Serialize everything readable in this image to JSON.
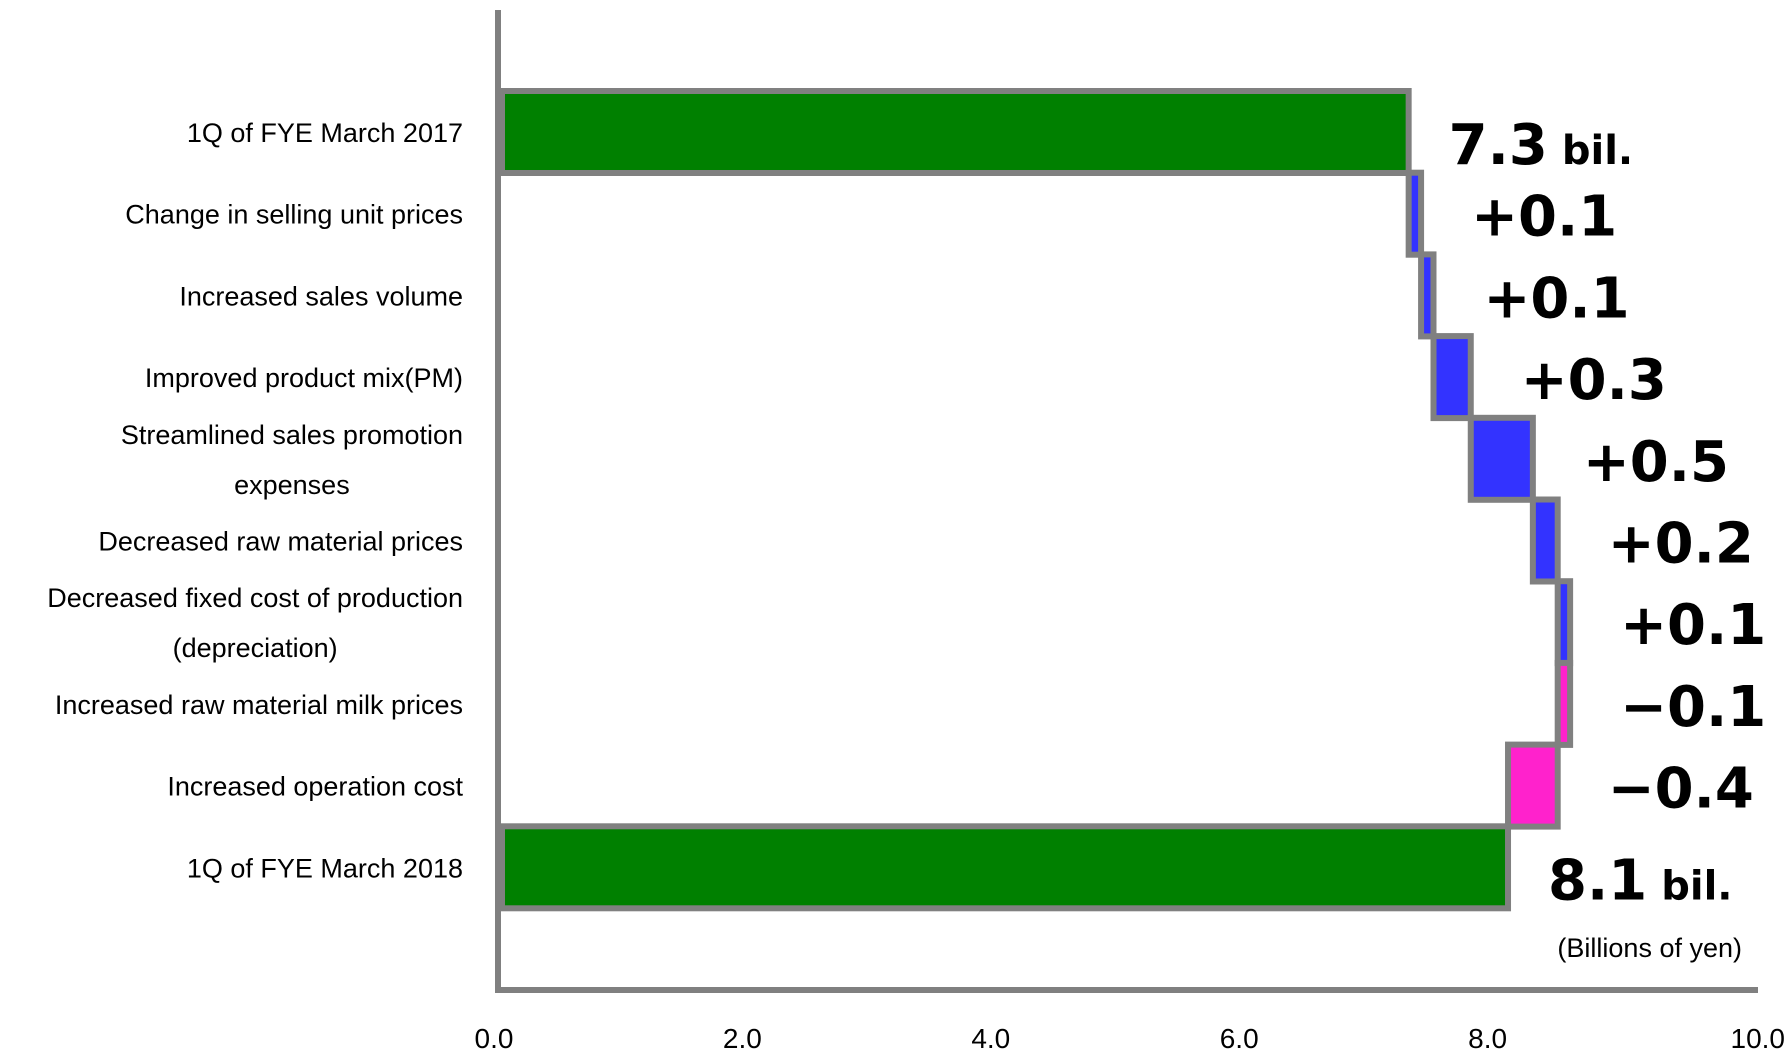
{
  "chart_data": {
    "type": "bar",
    "orientation": "horizontal-waterfall",
    "categories": [
      "1Q of FYE March 2017",
      "Change in selling unit prices",
      "Increased sales volume",
      "Improved product mix(PM)",
      "Streamlined sales promotion expenses",
      "Decreased raw material prices",
      "Decreased fixed cost of production (depreciation)",
      "Increased raw material milk prices",
      "Increased operation cost",
      "1Q of FYE March 2018"
    ],
    "category_lines": [
      [
        "1Q of FYE March 2017"
      ],
      [
        "Change in selling unit prices"
      ],
      [
        "Increased sales volume"
      ],
      [
        "Improved product mix(PM)"
      ],
      [
        "Streamlined sales promotion",
        "expenses"
      ],
      [
        "Decreased raw material prices"
      ],
      [
        "Decreased fixed cost of production",
        "(depreciation)"
      ],
      [
        "Increased raw material milk prices"
      ],
      [
        "Increased operation cost"
      ],
      [
        "1Q of FYE March 2018"
      ]
    ],
    "bars": [
      {
        "kind": "total",
        "start": 0.0,
        "end": 7.3
      },
      {
        "kind": "increase",
        "start": 7.3,
        "end": 7.4
      },
      {
        "kind": "increase",
        "start": 7.4,
        "end": 7.5
      },
      {
        "kind": "increase",
        "start": 7.5,
        "end": 7.8
      },
      {
        "kind": "increase",
        "start": 7.8,
        "end": 8.3
      },
      {
        "kind": "increase",
        "start": 8.3,
        "end": 8.5
      },
      {
        "kind": "increase",
        "start": 8.5,
        "end": 8.6
      },
      {
        "kind": "decrease",
        "start": 8.6,
        "end": 8.5
      },
      {
        "kind": "decrease",
        "start": 8.5,
        "end": 8.1
      },
      {
        "kind": "total",
        "start": 0.0,
        "end": 8.1
      }
    ],
    "value_labels": [
      {
        "value": "7.3",
        "unit": "bil."
      },
      {
        "value": "+0.1",
        "unit": ""
      },
      {
        "value": "+0.1",
        "unit": ""
      },
      {
        "value": "+0.3",
        "unit": ""
      },
      {
        "value": "+0.5",
        "unit": ""
      },
      {
        "value": "+0.2",
        "unit": ""
      },
      {
        "value": "+0.1",
        "unit": ""
      },
      {
        "value": "−0.1",
        "unit": ""
      },
      {
        "value": "−0.4",
        "unit": ""
      },
      {
        "value": "8.1",
        "unit": "bil."
      }
    ],
    "xlim": [
      0,
      10
    ],
    "x_ticks": [
      "0.0",
      "2.0",
      "4.0",
      "6.0",
      "8.0",
      "10.0"
    ],
    "unit_note": "(Billions of yen)",
    "grid": false,
    "colors": {
      "total": "#008000",
      "increase": "#3333ff",
      "decrease": "#ff22cc",
      "outline": "#808080",
      "axis": "#808080"
    }
  }
}
